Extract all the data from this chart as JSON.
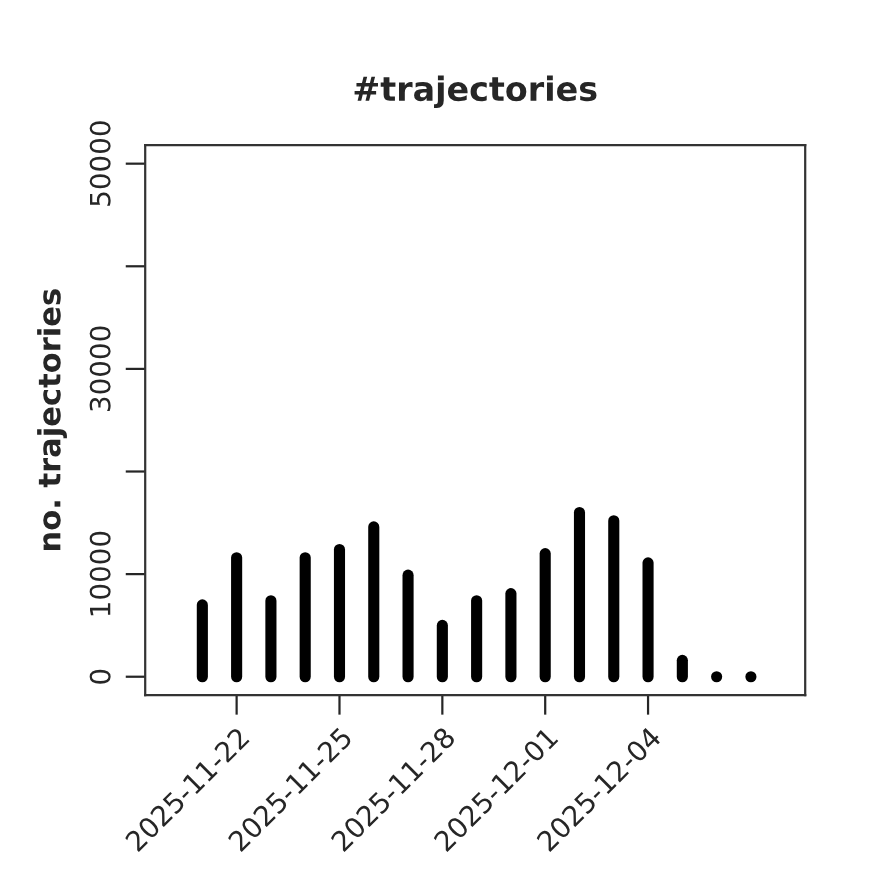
{
  "chart_data": {
    "type": "bar",
    "title": "#trajectories",
    "ylabel": "no. trajectories",
    "x": [
      "2025-11-21",
      "2025-11-22",
      "2025-11-23",
      "2025-11-24",
      "2025-11-25",
      "2025-11-26",
      "2025-11-27",
      "2025-11-28",
      "2025-11-29",
      "2025-11-30",
      "2025-12-01",
      "2025-12-02",
      "2025-12-03",
      "2025-12-04",
      "2025-12-05",
      "2025-12-06",
      "2025-12-07"
    ],
    "values": [
      7000,
      11600,
      7400,
      11600,
      12400,
      14600,
      9900,
      5000,
      7400,
      8100,
      12000,
      16000,
      15200,
      11100,
      1600,
      0,
      0
    ],
    "color": "#000000",
    "xlim": [
      "2025-11-19T08:00",
      "2025-12-08T14:00"
    ],
    "xticks": [
      "2025-11-22",
      "2025-11-25",
      "2025-11-28",
      "2025-12-01",
      "2025-12-04"
    ],
    "ylim": [
      -1800,
      51800
    ],
    "yticks": [
      0,
      10000,
      {
        "value": 20000,
        "label": null
      },
      30000,
      {
        "value": 40000,
        "label": null
      },
      50000
    ],
    "grid": false,
    "legend": false
  }
}
